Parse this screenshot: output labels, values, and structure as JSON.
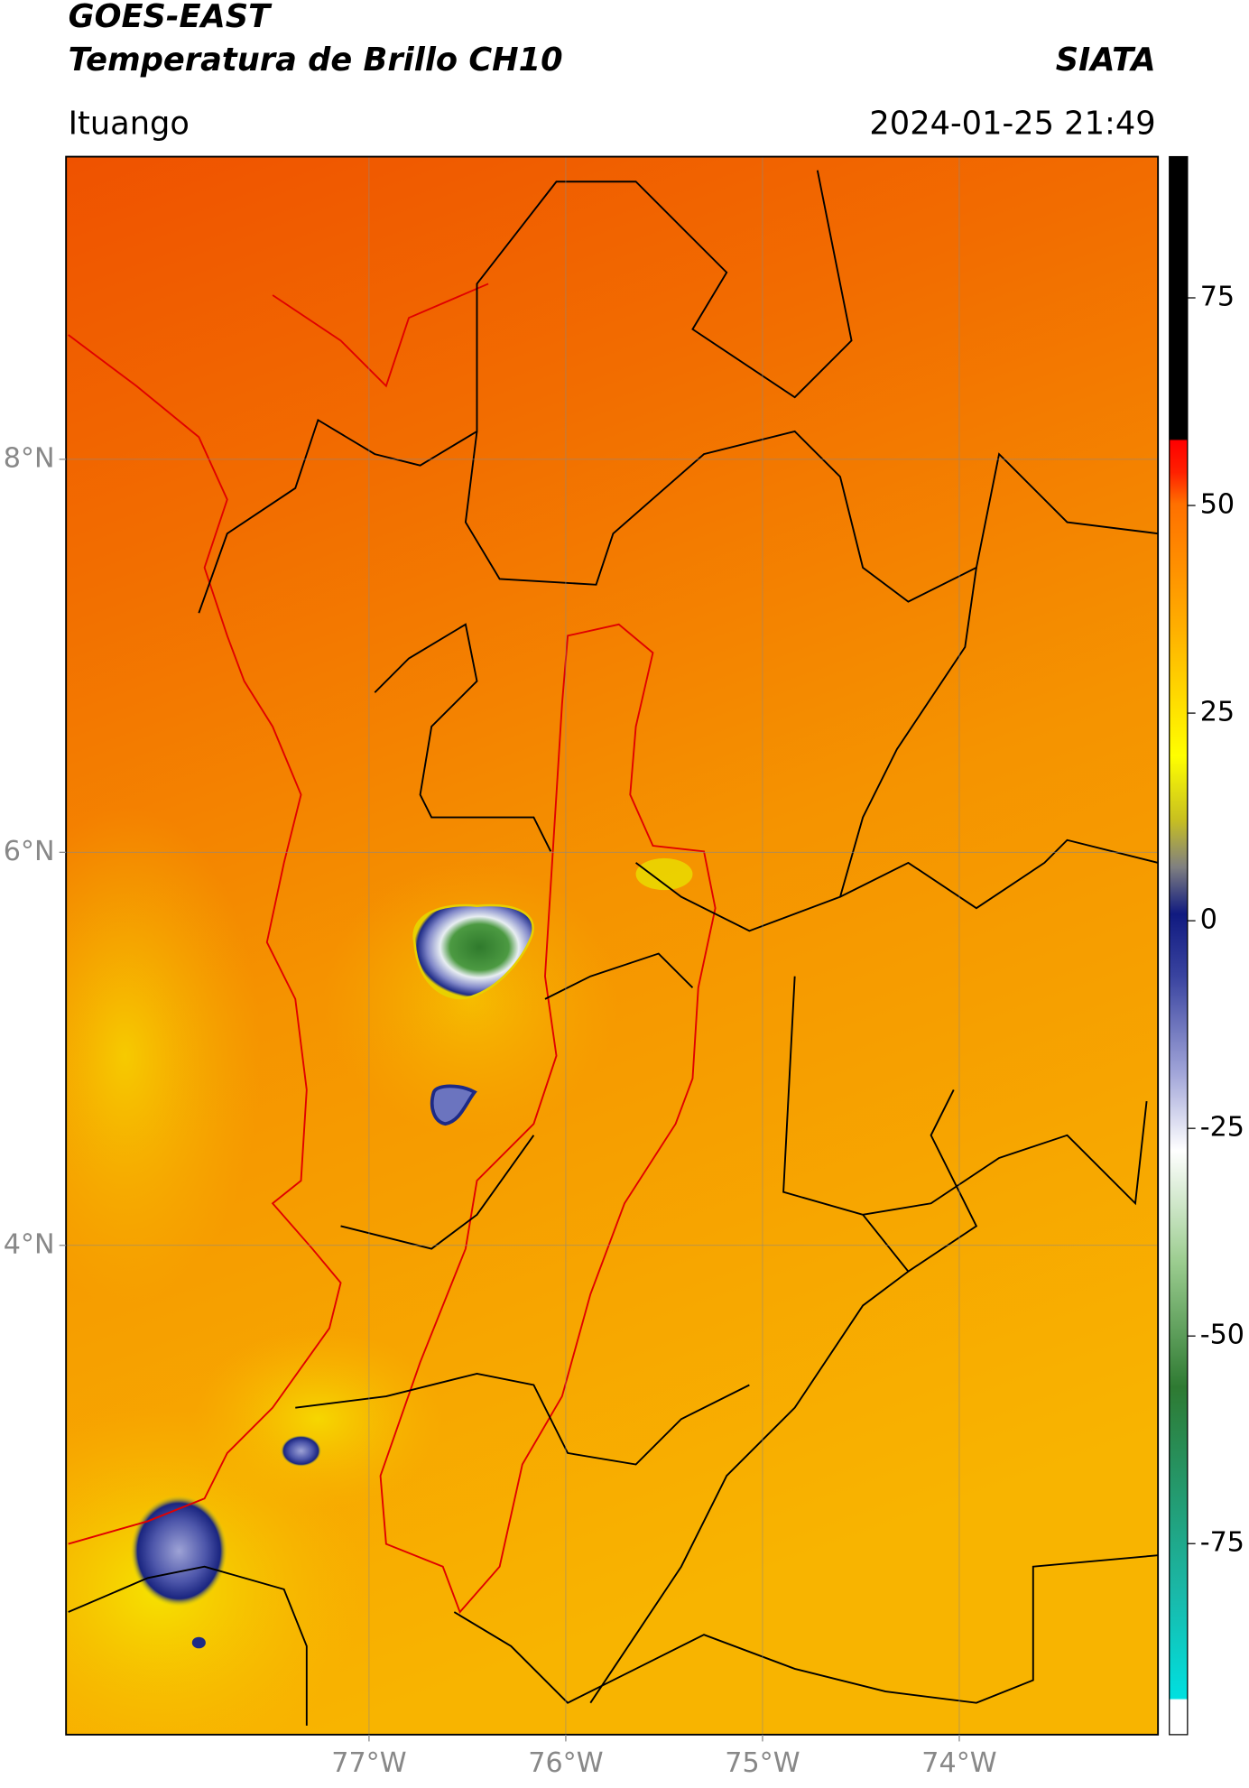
{
  "header": {
    "title": "GOES-EAST",
    "subtitle": "Temperatura de Brillo CH10",
    "source": "SIATA",
    "location": "Ituango",
    "datetime": "2024-01-25 21:49"
  },
  "map": {
    "xlim": [
      -78.54,
      -72.99
    ],
    "ylim": [
      1.51,
      9.54
    ],
    "xticks": [
      {
        "value": -77,
        "label": "77°W"
      },
      {
        "value": -76,
        "label": "76°W"
      },
      {
        "value": -75,
        "label": "75°W"
      },
      {
        "value": -74,
        "label": "74°W"
      }
    ],
    "yticks": [
      {
        "value": 8,
        "label": "8°N"
      },
      {
        "value": 6,
        "label": "6°N"
      },
      {
        "value": 4,
        "label": "4°N"
      }
    ],
    "grid": true
  },
  "colorbar": {
    "lim": [
      -98,
      92
    ],
    "ticks": [
      75,
      50,
      25,
      0,
      -25,
      -50,
      -75
    ]
  }
}
